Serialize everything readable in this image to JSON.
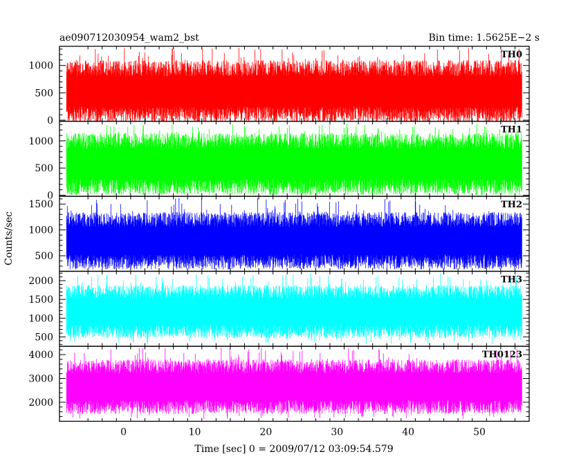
{
  "header": {
    "title": "ae090712030954_wam2_bst",
    "bin_time": "Bin time: 1.5625E−2 s"
  },
  "axes": {
    "ylabel": "Counts/sec",
    "xlabel": "Time [sec] 0 = 2009/07/12 03:09:54.579"
  },
  "chart_data": {
    "type": "line",
    "title": "ae090712030954_wam2_bst",
    "xlabel": "Time [sec] 0 = 2009/07/12 03:09:54.579",
    "ylabel": "Counts/sec",
    "xlim": [
      -9,
      57
    ],
    "x_data_range": [
      -8,
      56
    ],
    "x_ticks": [
      0,
      10,
      20,
      30,
      40,
      50
    ],
    "bin_time": 0.015625,
    "grid": false,
    "panels": [
      {
        "name": "TH0",
        "color": "#ff0000",
        "ylim": [
          -20,
          1350
        ],
        "yticks": [
          0,
          500,
          1000
        ],
        "yticklabels": [
          "0",
          "500",
          "1000"
        ],
        "typical_range": [
          100,
          950
        ],
        "mean": 520,
        "max": 1330,
        "min": 10
      },
      {
        "name": "TH1",
        "color": "#00ff00",
        "ylim": [
          -20,
          1360
        ],
        "yticks": [
          0,
          500,
          1000
        ],
        "yticklabels": [
          "0",
          "500",
          "1000"
        ],
        "typical_range": [
          150,
          1000
        ],
        "mean": 550,
        "max": 1320,
        "min": 20
      },
      {
        "name": "TH2",
        "color": "#0000ff",
        "ylim": [
          200,
          1650
        ],
        "yticks": [
          500,
          1000,
          1500
        ],
        "yticklabels": [
          "500",
          "1000",
          "1500"
        ],
        "typical_range": [
          380,
          1200
        ],
        "mean": 720,
        "max": 1620,
        "min": 250
      },
      {
        "name": "TH3",
        "color": "#00ffff",
        "ylim": [
          250,
          2250
        ],
        "yticks": [
          500,
          1000,
          1500,
          2000
        ],
        "yticklabels": [
          "500",
          "1000",
          "1500",
          "2000"
        ],
        "typical_range": [
          650,
          1700
        ],
        "mean": 1100,
        "max": 2200,
        "min": 300
      },
      {
        "name": "TH0123",
        "color": "#ff00ff",
        "ylim": [
          1200,
          4350
        ],
        "yticks": [
          2000,
          3000,
          4000
        ],
        "yticklabels": [
          "2000",
          "3000",
          "4000"
        ],
        "typical_range": [
          1800,
          3500
        ],
        "mean": 2600,
        "max": 4300,
        "min": 1300
      }
    ]
  }
}
